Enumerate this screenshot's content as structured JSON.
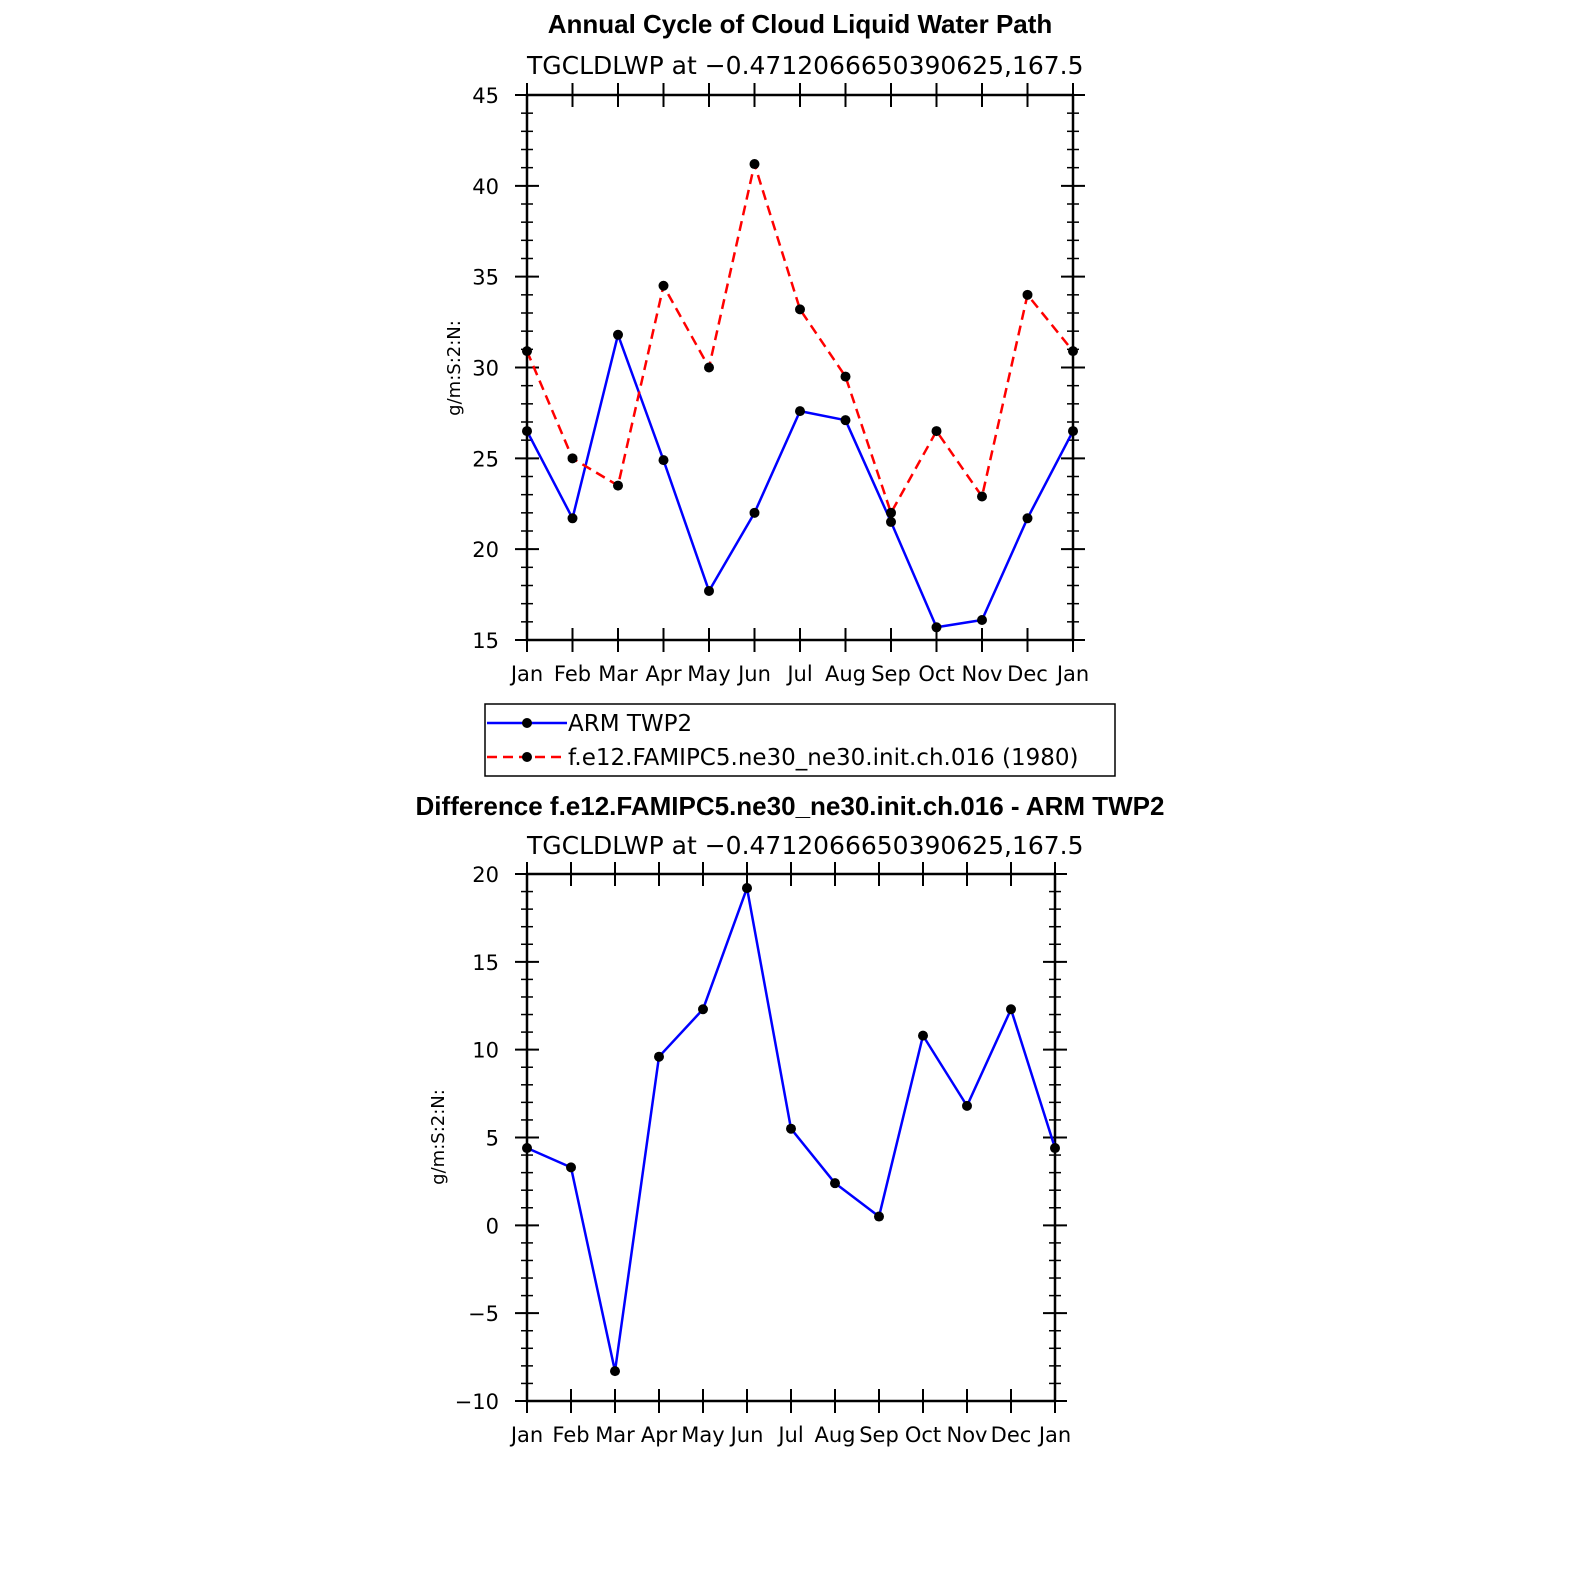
{
  "chart_data": [
    {
      "type": "line",
      "title": "Annual Cycle of Cloud Liquid Water Path",
      "subtitle": "TGCLDLWP at −0.4712066650390625,167.5",
      "ylabel": "g/m:S:2:N:",
      "xlabel": "",
      "categories": [
        "Jan",
        "Feb",
        "Mar",
        "Apr",
        "May",
        "Jun",
        "Jul",
        "Aug",
        "Sep",
        "Oct",
        "Nov",
        "Dec",
        "Jan"
      ],
      "ylim": [
        15,
        45
      ],
      "yticks": [
        15,
        20,
        25,
        30,
        35,
        40,
        45
      ],
      "ytick_labels": [
        "15",
        "20",
        "25",
        "30",
        "35",
        "40",
        "45"
      ],
      "series": [
        {
          "name": "ARM TWP2",
          "color": "#0000ff",
          "dash": "solid",
          "values": [
            26.5,
            21.7,
            31.8,
            24.9,
            17.7,
            22.0,
            27.6,
            27.1,
            21.5,
            15.7,
            16.1,
            21.7,
            26.5
          ]
        },
        {
          "name": "f.e12.FAMIPC5.ne30_ne30.init.ch.016 (1980)",
          "color": "#ff0000",
          "dash": "dashed",
          "values": [
            30.9,
            25.0,
            23.5,
            34.5,
            30.0,
            41.2,
            33.2,
            29.5,
            22.0,
            26.5,
            22.9,
            34.0,
            30.9
          ]
        }
      ],
      "legend": {
        "position": "below",
        "entries": [
          "ARM TWP2",
          "f.e12.FAMIPC5.ne30_ne30.init.ch.016 (1980)"
        ]
      }
    },
    {
      "type": "line",
      "title": "Difference f.e12.FAMIPC5.ne30_ne30.init.ch.016 - ARM TWP2",
      "subtitle": "TGCLDLWP at −0.4712066650390625,167.5",
      "ylabel": "g/m:S:2:N:",
      "xlabel": "",
      "categories": [
        "Jan",
        "Feb",
        "Mar",
        "Apr",
        "May",
        "Jun",
        "Jul",
        "Aug",
        "Sep",
        "Oct",
        "Nov",
        "Dec",
        "Jan"
      ],
      "ylim": [
        -10,
        20
      ],
      "yticks": [
        -10,
        -5,
        0,
        5,
        10,
        15,
        20
      ],
      "ytick_labels": [
        "−10",
        "−5",
        "0",
        "5",
        "10",
        "15",
        "20"
      ],
      "series": [
        {
          "name": "Difference",
          "color": "#0000ff",
          "dash": "solid",
          "values": [
            4.4,
            3.3,
            -8.3,
            9.6,
            12.3,
            19.2,
            5.5,
            2.4,
            0.5,
            10.8,
            6.8,
            12.3,
            4.4
          ]
        }
      ]
    }
  ]
}
